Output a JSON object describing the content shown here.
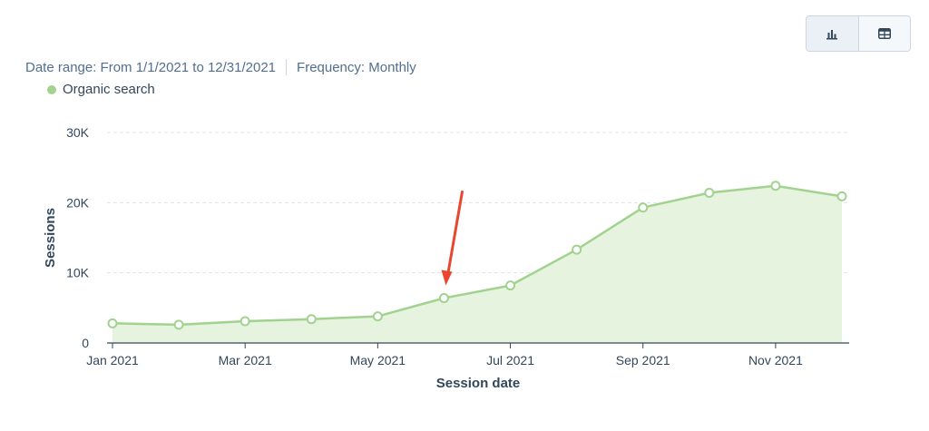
{
  "view_toggle": {
    "chart_icon": "bar-chart-icon",
    "table_icon": "table-icon"
  },
  "info": {
    "date_range": "Date range: From 1/1/2021 to 12/31/2021",
    "frequency": "Frequency: Monthly"
  },
  "colors": {
    "series_line": "#a2d28f",
    "series_fill": "#e5f3df",
    "annotation_arrow": "#e8462f",
    "gridline": "#dfe3eb",
    "axis": "#33475b"
  },
  "annotation": {
    "type": "arrow",
    "points_to": "Jun 2021"
  },
  "chart_data": {
    "type": "area",
    "x": [
      "Jan 2021",
      "Feb 2021",
      "Mar 2021",
      "Apr 2021",
      "May 2021",
      "Jun 2021",
      "Jul 2021",
      "Aug 2021",
      "Sep 2021",
      "Oct 2021",
      "Nov 2021",
      "Dec 2021"
    ],
    "series": [
      {
        "name": "Organic search",
        "values": [
          2800,
          2600,
          3100,
          3400,
          3800,
          6400,
          8200,
          13300,
          19300,
          21400,
          22400,
          20900
        ]
      }
    ],
    "xticks": [
      "Jan 2021",
      "Mar 2021",
      "May 2021",
      "Jul 2021",
      "Sep 2021",
      "Nov 2021"
    ],
    "yticks": [
      0,
      10000,
      20000,
      30000
    ],
    "yticklabels": [
      "0",
      "10K",
      "20K",
      "30K"
    ],
    "ylim": [
      0,
      30000
    ],
    "xlabel": "Session date",
    "ylabel": "Sessions",
    "grid": true,
    "legend_position": "top-left"
  }
}
